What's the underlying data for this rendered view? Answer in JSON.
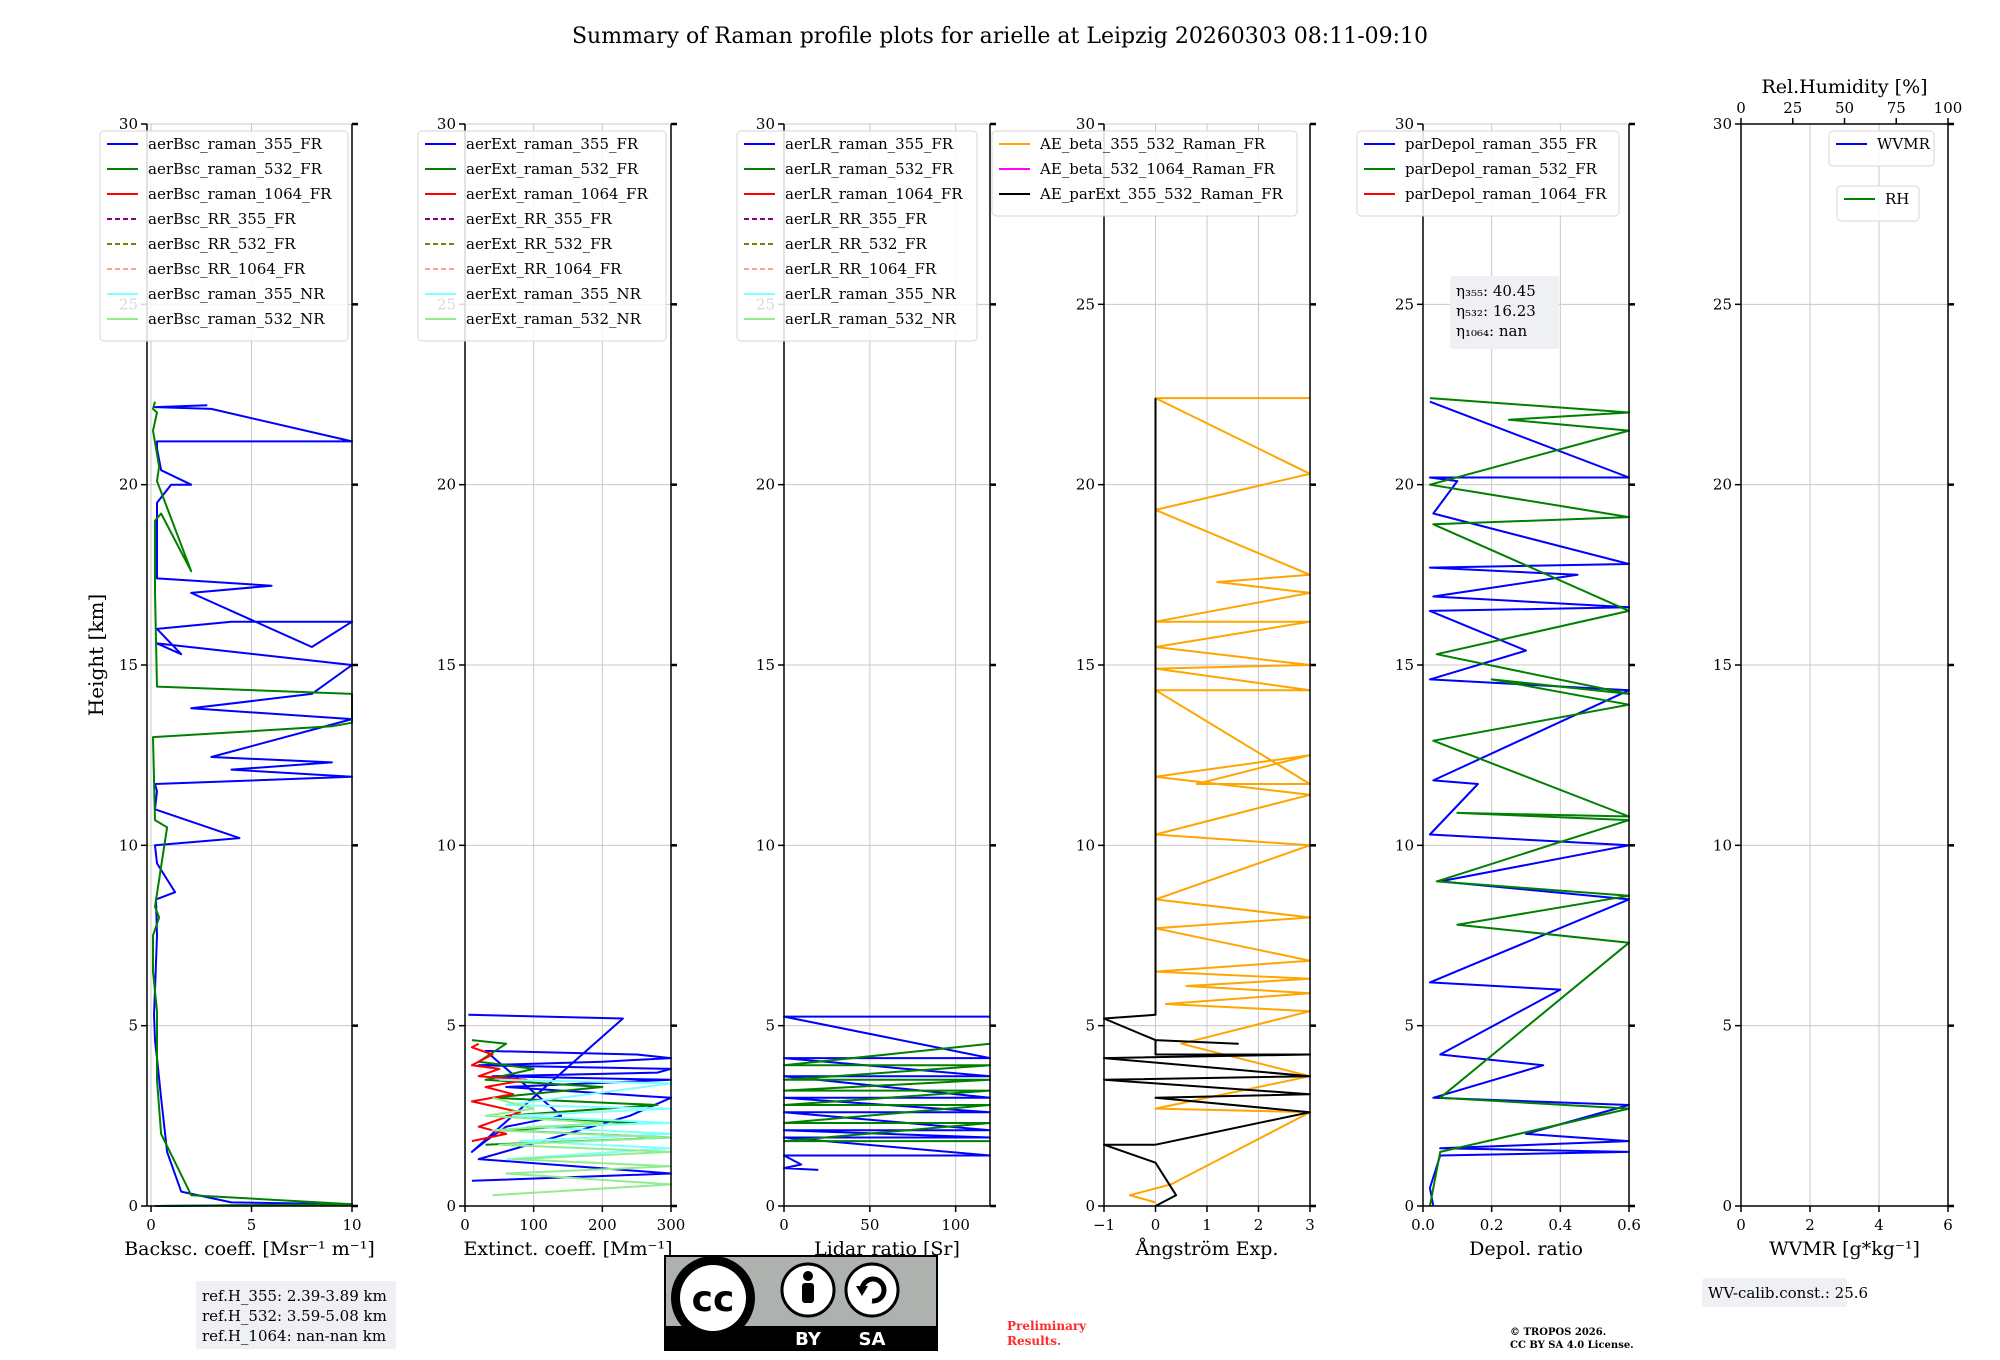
{
  "figure": {
    "title": "Summary of Raman profile plots for arielle at Leipzig 20260303 08:11-09:10",
    "ylabel": "Height [km]",
    "preliminary": [
      "Preliminary",
      "Results."
    ],
    "copyright": [
      "© TROPOS 2026.",
      "CC BY SA 4.0 License."
    ],
    "license_badge": [
      "BY",
      "SA"
    ]
  },
  "colors": {
    "blue": "#0000ff",
    "green": "#008000",
    "red": "#ff0000",
    "purple": "#800080",
    "olive": "#808000",
    "salmon": "#ff9f8f",
    "cyan": "#80ffff",
    "lightgreen": "#90ee90",
    "orange": "#ffa500",
    "magenta": "#ff00ff",
    "black": "#000000",
    "grid": "#c8c8c8",
    "infobox": "#eef0f3"
  },
  "chart_data": [
    {
      "type": "line",
      "xlabel": "Backsc. coeff. [Msr⁻¹ m⁻¹]",
      "xlim": [
        -0.2,
        10
      ],
      "ylim": [
        0,
        30
      ],
      "xticks": [
        0,
        5,
        10
      ],
      "yticks": [
        0,
        5,
        10,
        15,
        20,
        25,
        30
      ],
      "legend": [
        {
          "label": "aerBsc_raman_355_FR",
          "color": "#0000ff",
          "dash": false
        },
        {
          "label": "aerBsc_raman_532_FR",
          "color": "#008000",
          "dash": false
        },
        {
          "label": "aerBsc_raman_1064_FR",
          "color": "#ff0000",
          "dash": false
        },
        {
          "label": "aerBsc_RR_355_FR",
          "color": "#800080",
          "dash": true
        },
        {
          "label": "aerBsc_RR_532_FR",
          "color": "#808000",
          "dash": true
        },
        {
          "label": "aerBsc_RR_1064_FR",
          "color": "#ff9f8f",
          "dash": true
        },
        {
          "label": "aerBsc_raman_355_NR",
          "color": "#80ffff",
          "dash": false
        },
        {
          "label": "aerBsc_raman_532_NR",
          "color": "#90ee90",
          "dash": false
        }
      ],
      "info": [
        "ref.H_355: 2.39-3.89 km",
        "ref.H_532: 3.59-5.08 km",
        "ref.H_1064: nan-nan km"
      ],
      "series": [
        {
          "name": "aerBsc_raman_355_FR",
          "color": "#0000ff",
          "x": [
            0.3,
            10,
            4,
            1.5,
            0.8,
            0.5,
            0.3,
            0.2,
            0.15,
            0.2,
            0.3,
            0.25,
            1.2,
            0.3,
            0.2,
            4.4,
            0.2,
            0.3,
            0.2,
            10,
            4,
            9,
            3,
            10,
            2,
            8,
            10,
            0.3,
            1.5,
            0.3,
            4,
            10,
            8,
            2,
            6,
            0.3,
            0.3,
            1,
            2,
            0.5,
            0.3,
            0.3,
            1,
            10,
            3,
            0.2,
            2.8
          ],
          "y": [
            0,
            0.05,
            0.1,
            0.4,
            1.5,
            3,
            4.1,
            4.6,
            5.3,
            6,
            7.5,
            8.5,
            8.7,
            9.5,
            10,
            10.2,
            11,
            11.5,
            11.7,
            11.9,
            12.1,
            12.3,
            12.45,
            13.5,
            13.8,
            14.2,
            15,
            15.6,
            15.3,
            16.0,
            16.2,
            16.2,
            15.5,
            17.0,
            17.2,
            17.4,
            19.5,
            20.0,
            20.0,
            20.4,
            21.0,
            21.2,
            21.2,
            21.2,
            22.1,
            22.15,
            22.2
          ]
        },
        {
          "name": "aerBsc_raman_532_FR",
          "color": "#008000",
          "x": [
            0.2,
            10,
            2,
            0.5,
            0.3,
            0.3,
            0.3,
            0.1,
            0.1,
            0.4,
            0.2,
            0.8,
            0.2,
            0.1,
            9,
            10,
            10,
            0.3,
            0.2,
            0.2,
            0.2,
            0.5,
            2,
            0.3,
            0.4,
            0.1,
            0.3,
            0.1,
            0.2
          ],
          "y": [
            0,
            0.05,
            0.3,
            2,
            3.5,
            4.5,
            5.4,
            6.5,
            7.5,
            8,
            8.3,
            10.5,
            10.7,
            13,
            13.3,
            13.4,
            14.2,
            14.4,
            17.0,
            17.5,
            19.0,
            19.2,
            17.6,
            20.1,
            20.5,
            21.5,
            22.0,
            22.1,
            22.3
          ]
        }
      ]
    },
    {
      "type": "line",
      "xlabel": "Extinct. coeff. [Mm⁻¹]",
      "xlim": [
        0,
        300
      ],
      "ylim": [
        0,
        30
      ],
      "xticks": [
        0,
        100,
        200,
        300
      ],
      "yticks": [
        0,
        5,
        10,
        15,
        20,
        25,
        30
      ],
      "legend": [
        {
          "label": "aerExt_raman_355_FR",
          "color": "#0000ff",
          "dash": false
        },
        {
          "label": "aerExt_raman_532_FR",
          "color": "#008000",
          "dash": false
        },
        {
          "label": "aerExt_raman_1064_FR",
          "color": "#ff0000",
          "dash": false
        },
        {
          "label": "aerExt_RR_355_FR",
          "color": "#800080",
          "dash": true
        },
        {
          "label": "aerExt_RR_532_FR",
          "color": "#808000",
          "dash": true
        },
        {
          "label": "aerExt_RR_1064_FR",
          "color": "#ff9f8f",
          "dash": true
        },
        {
          "label": "aerExt_raman_355_NR",
          "color": "#80ffff",
          "dash": false
        },
        {
          "label": "aerExt_raman_532_NR",
          "color": "#90ee90",
          "dash": false
        }
      ],
      "series": [
        {
          "name": "aerExt_raman_355_FR",
          "color": "#0000ff",
          "x": [
            10,
            300,
            20,
            240,
            300,
            60,
            300,
            40,
            280,
            300,
            20,
            200,
            300,
            250,
            30,
            140,
            60,
            30,
            10,
            230,
            5
          ],
          "y": [
            0.7,
            0.9,
            1.3,
            2.5,
            3.0,
            3.3,
            3.5,
            3.6,
            3.7,
            3.8,
            3.9,
            4.0,
            4.1,
            4.2,
            4.3,
            2.5,
            2.2,
            1.8,
            1.5,
            5.2,
            5.3
          ]
        },
        {
          "name": "aerExt_raman_532_FR",
          "color": "#008000",
          "x": [
            30,
            300,
            50,
            250,
            60,
            280,
            40,
            200,
            30,
            100,
            20,
            60,
            10
          ],
          "y": [
            1.7,
            1.9,
            2.1,
            2.3,
            2.5,
            2.8,
            3.0,
            3.3,
            3.5,
            3.8,
            4.0,
            4.5,
            4.6
          ]
        },
        {
          "name": "aerExt_raman_1064_FR",
          "color": "#ff0000",
          "x": [
            10,
            60,
            20,
            80,
            10,
            70,
            30,
            90,
            20,
            50,
            10,
            40,
            10,
            20
          ],
          "y": [
            1.8,
            2.0,
            2.2,
            2.6,
            2.9,
            3.1,
            3.3,
            3.5,
            3.6,
            3.8,
            3.9,
            4.2,
            4.4,
            4.5
          ]
        },
        {
          "name": "aerExt_raman_355_NR",
          "color": "#80ffff",
          "x": [
            60,
            300,
            80,
            300,
            90,
            300,
            70,
            300,
            60,
            300,
            50
          ],
          "y": [
            1.3,
            1.6,
            1.8,
            2.0,
            2.2,
            2.3,
            2.5,
            2.7,
            2.8,
            3.4,
            3.5
          ]
        },
        {
          "name": "aerExt_raman_532_NR",
          "color": "#90ee90",
          "x": [
            40,
            300,
            60,
            300,
            70,
            300,
            50,
            300,
            40,
            200,
            30,
            100,
            40
          ],
          "y": [
            0.3,
            0.6,
            0.9,
            1.1,
            1.3,
            1.5,
            1.7,
            1.9,
            2.1,
            2.3,
            2.5,
            2.7,
            3.0
          ]
        }
      ]
    },
    {
      "type": "line",
      "xlabel": "Lidar ratio [Sr]",
      "xlim": [
        0,
        120
      ],
      "ylim": [
        0,
        30
      ],
      "xticks": [
        0,
        50,
        100
      ],
      "yticks": [
        0,
        5,
        10,
        15,
        20,
        25,
        30
      ],
      "legend": [
        {
          "label": "aerLR_raman_355_FR",
          "color": "#0000ff",
          "dash": false
        },
        {
          "label": "aerLR_raman_532_FR",
          "color": "#008000",
          "dash": false
        },
        {
          "label": "aerLR_raman_1064_FR",
          "color": "#ff0000",
          "dash": false
        },
        {
          "label": "aerLR_RR_355_FR",
          "color": "#800080",
          "dash": true
        },
        {
          "label": "aerLR_RR_532_FR",
          "color": "#808000",
          "dash": true
        },
        {
          "label": "aerLR_RR_1064_FR",
          "color": "#ff9f8f",
          "dash": true
        },
        {
          "label": "aerLR_raman_355_NR",
          "color": "#80ffff",
          "dash": false
        },
        {
          "label": "aerLR_raman_532_NR",
          "color": "#90ee90",
          "dash": false
        }
      ],
      "series": [
        {
          "name": "aerLR_raman_355_FR",
          "color": "#0000ff",
          "x": [
            20,
            0,
            10,
            0,
            120,
            0,
            120,
            0,
            120,
            0,
            120,
            0,
            120,
            0,
            120,
            0,
            120,
            0,
            120
          ],
          "y": [
            1.0,
            1.05,
            1.15,
            1.4,
            1.4,
            1.9,
            1.9,
            2.1,
            2.1,
            2.6,
            2.6,
            3.0,
            3.0,
            3.6,
            3.6,
            4.1,
            4.1,
            5.25,
            5.25
          ]
        },
        {
          "name": "aerLR_raman_532_FR",
          "color": "#008000",
          "x": [
            120,
            0,
            120,
            0,
            120,
            0,
            120,
            0,
            120,
            0,
            120,
            0,
            120
          ],
          "y": [
            1.8,
            1.8,
            2.3,
            2.3,
            2.8,
            2.8,
            3.2,
            3.2,
            3.5,
            3.5,
            3.9,
            3.9,
            4.5
          ]
        }
      ]
    },
    {
      "type": "line",
      "xlabel": "Ångström Exp.",
      "xlim": [
        -1,
        3
      ],
      "ylim": [
        0,
        30
      ],
      "xticks": [
        -1,
        0,
        1,
        2,
        3
      ],
      "yticks": [
        0,
        5,
        10,
        15,
        20,
        25,
        30
      ],
      "legend": [
        {
          "label": "AE_beta_355_532_Raman_FR",
          "color": "#ffa500",
          "dash": false
        },
        {
          "label": "AE_beta_532_1064_Raman_FR",
          "color": "#ff00ff",
          "dash": false
        },
        {
          "label": "AE_parExt_355_532_Raman_FR",
          "color": "#000000",
          "dash": false
        }
      ],
      "series": [
        {
          "name": "AE_beta_355_532_Raman_FR",
          "color": "#ffa500",
          "x": [
            0,
            -0.5,
            0.3,
            3,
            0,
            3,
            0.5,
            3,
            0.2,
            3,
            0.6,
            3,
            0,
            3,
            0,
            3,
            0,
            3,
            0,
            3,
            0,
            3,
            0.8,
            3,
            0,
            3,
            0,
            3,
            0,
            3,
            0,
            3,
            1.2,
            3,
            0,
            3,
            0,
            3
          ],
          "y": [
            0.1,
            0.3,
            0.6,
            2.6,
            2.7,
            3.6,
            4.5,
            5.4,
            5.6,
            5.9,
            6.1,
            6.3,
            6.5,
            6.8,
            7.7,
            8.0,
            8.5,
            10.0,
            10.3,
            11.4,
            11.9,
            12.5,
            11.7,
            11.7,
            14.3,
            14.3,
            14.9,
            15.0,
            15.5,
            16.2,
            16.2,
            17.0,
            17.3,
            17.5,
            19.3,
            20.3,
            22.4,
            22.4
          ]
        },
        {
          "name": "AE_parExt_355_532_Raman_FR",
          "color": "#000000",
          "x": [
            0,
            0.4,
            0,
            -1,
            0,
            3,
            0,
            3,
            -1,
            3,
            -1,
            3,
            0,
            0,
            1.6,
            0,
            -1,
            0,
            0
          ],
          "y": [
            0,
            0.3,
            1.2,
            1.7,
            1.7,
            2.6,
            3.0,
            3.1,
            3.5,
            3.6,
            4.1,
            4.2,
            4.2,
            4.6,
            4.5,
            4.6,
            5.2,
            5.3,
            22.4
          ]
        }
      ]
    },
    {
      "type": "line",
      "xlabel": "Depol. ratio",
      "xlim": [
        0,
        0.6
      ],
      "ylim": [
        0,
        30
      ],
      "xticks": [
        0.0,
        0.2,
        0.4,
        0.6
      ],
      "yticks": [
        0,
        5,
        10,
        15,
        20,
        25,
        30
      ],
      "legend": [
        {
          "label": "parDepol_raman_355_FR",
          "color": "#0000ff",
          "dash": false
        },
        {
          "label": "parDepol_raman_532_FR",
          "color": "#008000",
          "dash": false
        },
        {
          "label": "parDepol_raman_1064_FR",
          "color": "#ff0000",
          "dash": false
        }
      ],
      "info": [
        "η₃₅₅: 40.45",
        "η₅₃₂: 16.23",
        "η₁₀₆₄: nan"
      ],
      "series": [
        {
          "name": "parDepol_raman_355_FR",
          "color": "#0000ff",
          "x": [
            0.03,
            0.02,
            0.05,
            0.6,
            0.05,
            0.6,
            0.3,
            0.6,
            0.03,
            0.35,
            0.05,
            0.4,
            0.02,
            0.6,
            0.05,
            0.6,
            0.02,
            0.16,
            0.03,
            0.6,
            0.02,
            0.3,
            0.02,
            0.6,
            0.03,
            0.45,
            0.02,
            0.6,
            0.03,
            0.1,
            0.02,
            0.6,
            0.02
          ],
          "y": [
            0,
            0.5,
            1.4,
            1.5,
            1.6,
            1.8,
            2.0,
            2.8,
            3.0,
            3.9,
            4.2,
            6.0,
            6.2,
            8.5,
            9.0,
            10.0,
            10.3,
            11.7,
            11.8,
            14.3,
            14.6,
            15.4,
            16.5,
            16.6,
            16.9,
            17.5,
            17.7,
            17.8,
            19.2,
            20.1,
            20.2,
            20.2,
            22.3
          ]
        },
        {
          "name": "parDepol_raman_532_FR",
          "color": "#008000",
          "x": [
            0.02,
            0.05,
            0.6,
            0.05,
            0.6,
            0.1,
            0.6,
            0.04,
            0.6,
            0.1,
            0.6,
            0.03,
            0.6,
            0.2,
            0.6,
            0.04,
            0.6,
            0.03,
            0.6,
            0.02,
            0.6,
            0.25,
            0.6,
            0.02
          ],
          "y": [
            0,
            1.5,
            2.7,
            3.0,
            7.3,
            7.8,
            8.6,
            9.0,
            10.7,
            10.9,
            10.8,
            12.9,
            13.9,
            14.6,
            14.2,
            15.3,
            16.5,
            18.9,
            19.1,
            20.0,
            21.5,
            21.8,
            22.0,
            22.4
          ]
        }
      ]
    },
    {
      "type": "line",
      "xlabel": "WVMR [g*kg⁻¹]",
      "xlim": [
        0,
        6
      ],
      "ylim": [
        0,
        30
      ],
      "xticks": [
        0,
        2,
        4,
        6
      ],
      "yticks": [
        0,
        5,
        10,
        15,
        20,
        25,
        30
      ],
      "top_xlabel": "Rel.Humidity [%]",
      "top_xlim": [
        0,
        100
      ],
      "top_xticks": [
        0,
        25,
        50,
        75,
        100
      ],
      "legend": [
        {
          "label": "WVMR",
          "color": "#0000ff",
          "dash": false
        }
      ],
      "legend2": [
        {
          "label": "RH",
          "color": "#008000",
          "dash": false
        }
      ],
      "info": [
        "WV-calib.const.: 25.6"
      ],
      "series": []
    }
  ]
}
